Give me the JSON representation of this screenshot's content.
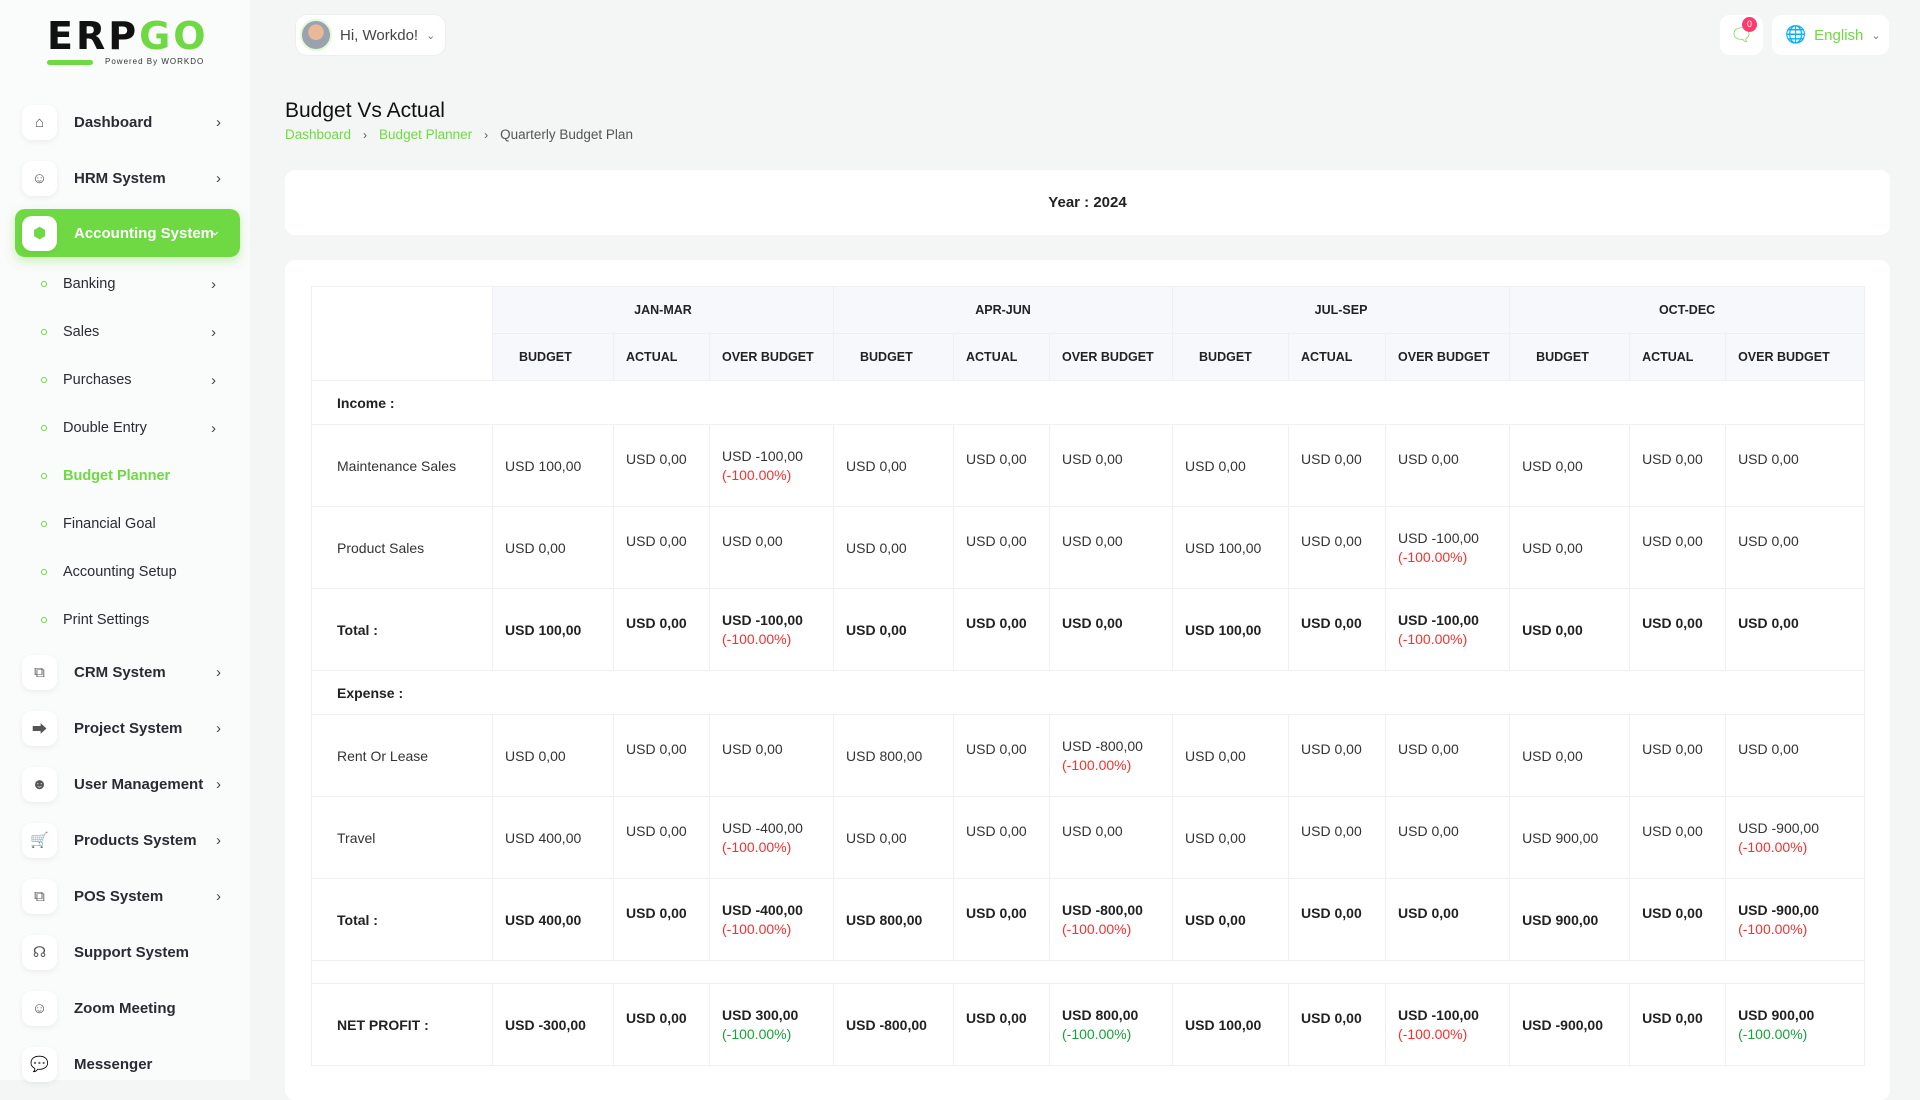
{
  "logo": {
    "text_main": "ERP",
    "text_accent": "GO",
    "tagline": "Powered By WORKDO"
  },
  "header": {
    "greeting": "Hi, Workdo!",
    "messages_count": "0",
    "language": "English"
  },
  "sidebar": {
    "items": [
      {
        "label": "Dashboard",
        "icon": "home-icon"
      },
      {
        "label": "HRM System",
        "icon": "user-icon"
      },
      {
        "label": "Accounting System",
        "icon": "box-icon",
        "active": true
      },
      {
        "label": "CRM System",
        "icon": "layers-icon"
      },
      {
        "label": "Project System",
        "icon": "share-icon"
      },
      {
        "label": "User Management",
        "icon": "users-icon"
      },
      {
        "label": "Products System",
        "icon": "cart-icon"
      },
      {
        "label": "POS System",
        "icon": "layers-icon"
      },
      {
        "label": "Support System",
        "icon": "headphones-icon"
      },
      {
        "label": "Zoom Meeting",
        "icon": "user-video-icon"
      },
      {
        "label": "Messenger",
        "icon": "chat-icon"
      }
    ],
    "sub_items": [
      {
        "label": "Banking",
        "chevron": true
      },
      {
        "label": "Sales",
        "chevron": true
      },
      {
        "label": "Purchases",
        "chevron": true
      },
      {
        "label": "Double Entry",
        "chevron": true
      },
      {
        "label": "Budget Planner",
        "current": true
      },
      {
        "label": "Financial Goal"
      },
      {
        "label": "Accounting Setup"
      },
      {
        "label": "Print Settings"
      }
    ]
  },
  "page": {
    "title": "Budget Vs Actual",
    "breadcrumb": [
      "Dashboard",
      "Budget Planner",
      "Quarterly Budget Plan"
    ],
    "year_label": "Year : 2024"
  },
  "colors": {
    "accent": "#6fd943",
    "negative": "#ff2d2d",
    "positive": "#1a9e3a",
    "badge": "#ff3a6e"
  },
  "table": {
    "periods": [
      "JAN-MAR",
      "APR-JUN",
      "JUL-SEP",
      "OCT-DEC"
    ],
    "subheaders": [
      "BUDGET",
      "ACTUAL",
      "OVER BUDGET"
    ],
    "rows": [
      {
        "type": "section",
        "label": "Income :"
      },
      {
        "type": "data",
        "label": "Maintenance Sales",
        "cells": [
          [
            "USD 100,00"
          ],
          [
            "USD 0,00"
          ],
          [
            "USD -100,00",
            "(-100.00%)",
            "red"
          ],
          [
            "USD 0,00"
          ],
          [
            "USD 0,00"
          ],
          [
            "USD 0,00"
          ],
          [
            "USD 0,00"
          ],
          [
            "USD 0,00"
          ],
          [
            "USD 0,00"
          ],
          [
            "USD 0,00"
          ],
          [
            "USD 0,00"
          ],
          [
            "USD 0,00"
          ]
        ]
      },
      {
        "type": "data",
        "label": "Product Sales",
        "cells": [
          [
            "USD 0,00"
          ],
          [
            "USD 0,00"
          ],
          [
            "USD 0,00"
          ],
          [
            "USD 0,00"
          ],
          [
            "USD 0,00"
          ],
          [
            "USD 0,00"
          ],
          [
            "USD 100,00"
          ],
          [
            "USD 0,00"
          ],
          [
            "USD -100,00",
            "(-100.00%)",
            "red"
          ],
          [
            "USD 0,00"
          ],
          [
            "USD 0,00"
          ],
          [
            "USD 0,00"
          ]
        ]
      },
      {
        "type": "total",
        "label": "Total :",
        "cells": [
          [
            "USD 100,00"
          ],
          [
            "USD 0,00"
          ],
          [
            "USD -100,00",
            "(-100.00%)",
            "red"
          ],
          [
            "USD 0,00"
          ],
          [
            "USD 0,00"
          ],
          [
            "USD 0,00"
          ],
          [
            "USD 100,00"
          ],
          [
            "USD 0,00"
          ],
          [
            "USD -100,00",
            "(-100.00%)",
            "red"
          ],
          [
            "USD 0,00"
          ],
          [
            "USD 0,00"
          ],
          [
            "USD 0,00"
          ]
        ]
      },
      {
        "type": "section",
        "label": "Expense :"
      },
      {
        "type": "data",
        "label": "Rent Or Lease",
        "cells": [
          [
            "USD 0,00"
          ],
          [
            "USD 0,00"
          ],
          [
            "USD 0,00"
          ],
          [
            "USD 800,00"
          ],
          [
            "USD 0,00"
          ],
          [
            "USD -800,00",
            "(-100.00%)",
            "red"
          ],
          [
            "USD 0,00"
          ],
          [
            "USD 0,00"
          ],
          [
            "USD 0,00"
          ],
          [
            "USD 0,00"
          ],
          [
            "USD 0,00"
          ],
          [
            "USD 0,00"
          ]
        ]
      },
      {
        "type": "data",
        "label": "Travel",
        "cells": [
          [
            "USD 400,00"
          ],
          [
            "USD 0,00"
          ],
          [
            "USD -400,00",
            "(-100.00%)",
            "red"
          ],
          [
            "USD 0,00"
          ],
          [
            "USD 0,00"
          ],
          [
            "USD 0,00"
          ],
          [
            "USD 0,00"
          ],
          [
            "USD 0,00"
          ],
          [
            "USD 0,00"
          ],
          [
            "USD 900,00"
          ],
          [
            "USD 0,00"
          ],
          [
            "USD -900,00",
            "(-100.00%)",
            "red"
          ]
        ]
      },
      {
        "type": "total",
        "label": "Total :",
        "cells": [
          [
            "USD 400,00"
          ],
          [
            "USD 0,00"
          ],
          [
            "USD -400,00",
            "(-100.00%)",
            "red"
          ],
          [
            "USD 800,00"
          ],
          [
            "USD 0,00"
          ],
          [
            "USD -800,00",
            "(-100.00%)",
            "red"
          ],
          [
            "USD 0,00"
          ],
          [
            "USD 0,00"
          ],
          [
            "USD 0,00"
          ],
          [
            "USD 900,00"
          ],
          [
            "USD 0,00"
          ],
          [
            "USD -900,00",
            "(-100.00%)",
            "red"
          ]
        ]
      },
      {
        "type": "spacer"
      },
      {
        "type": "total",
        "label": "NET PROFIT :",
        "cells": [
          [
            "USD -300,00"
          ],
          [
            "USD 0,00"
          ],
          [
            "USD 300,00",
            "(-100.00%)",
            "green"
          ],
          [
            "USD -800,00"
          ],
          [
            "USD 0,00"
          ],
          [
            "USD 800,00",
            "(-100.00%)",
            "green"
          ],
          [
            "USD 100,00"
          ],
          [
            "USD 0,00"
          ],
          [
            "USD -100,00",
            "(-100.00%)",
            "red"
          ],
          [
            "USD -900,00"
          ],
          [
            "USD 0,00"
          ],
          [
            "USD 900,00",
            "(-100.00%)",
            "green"
          ]
        ]
      }
    ]
  }
}
